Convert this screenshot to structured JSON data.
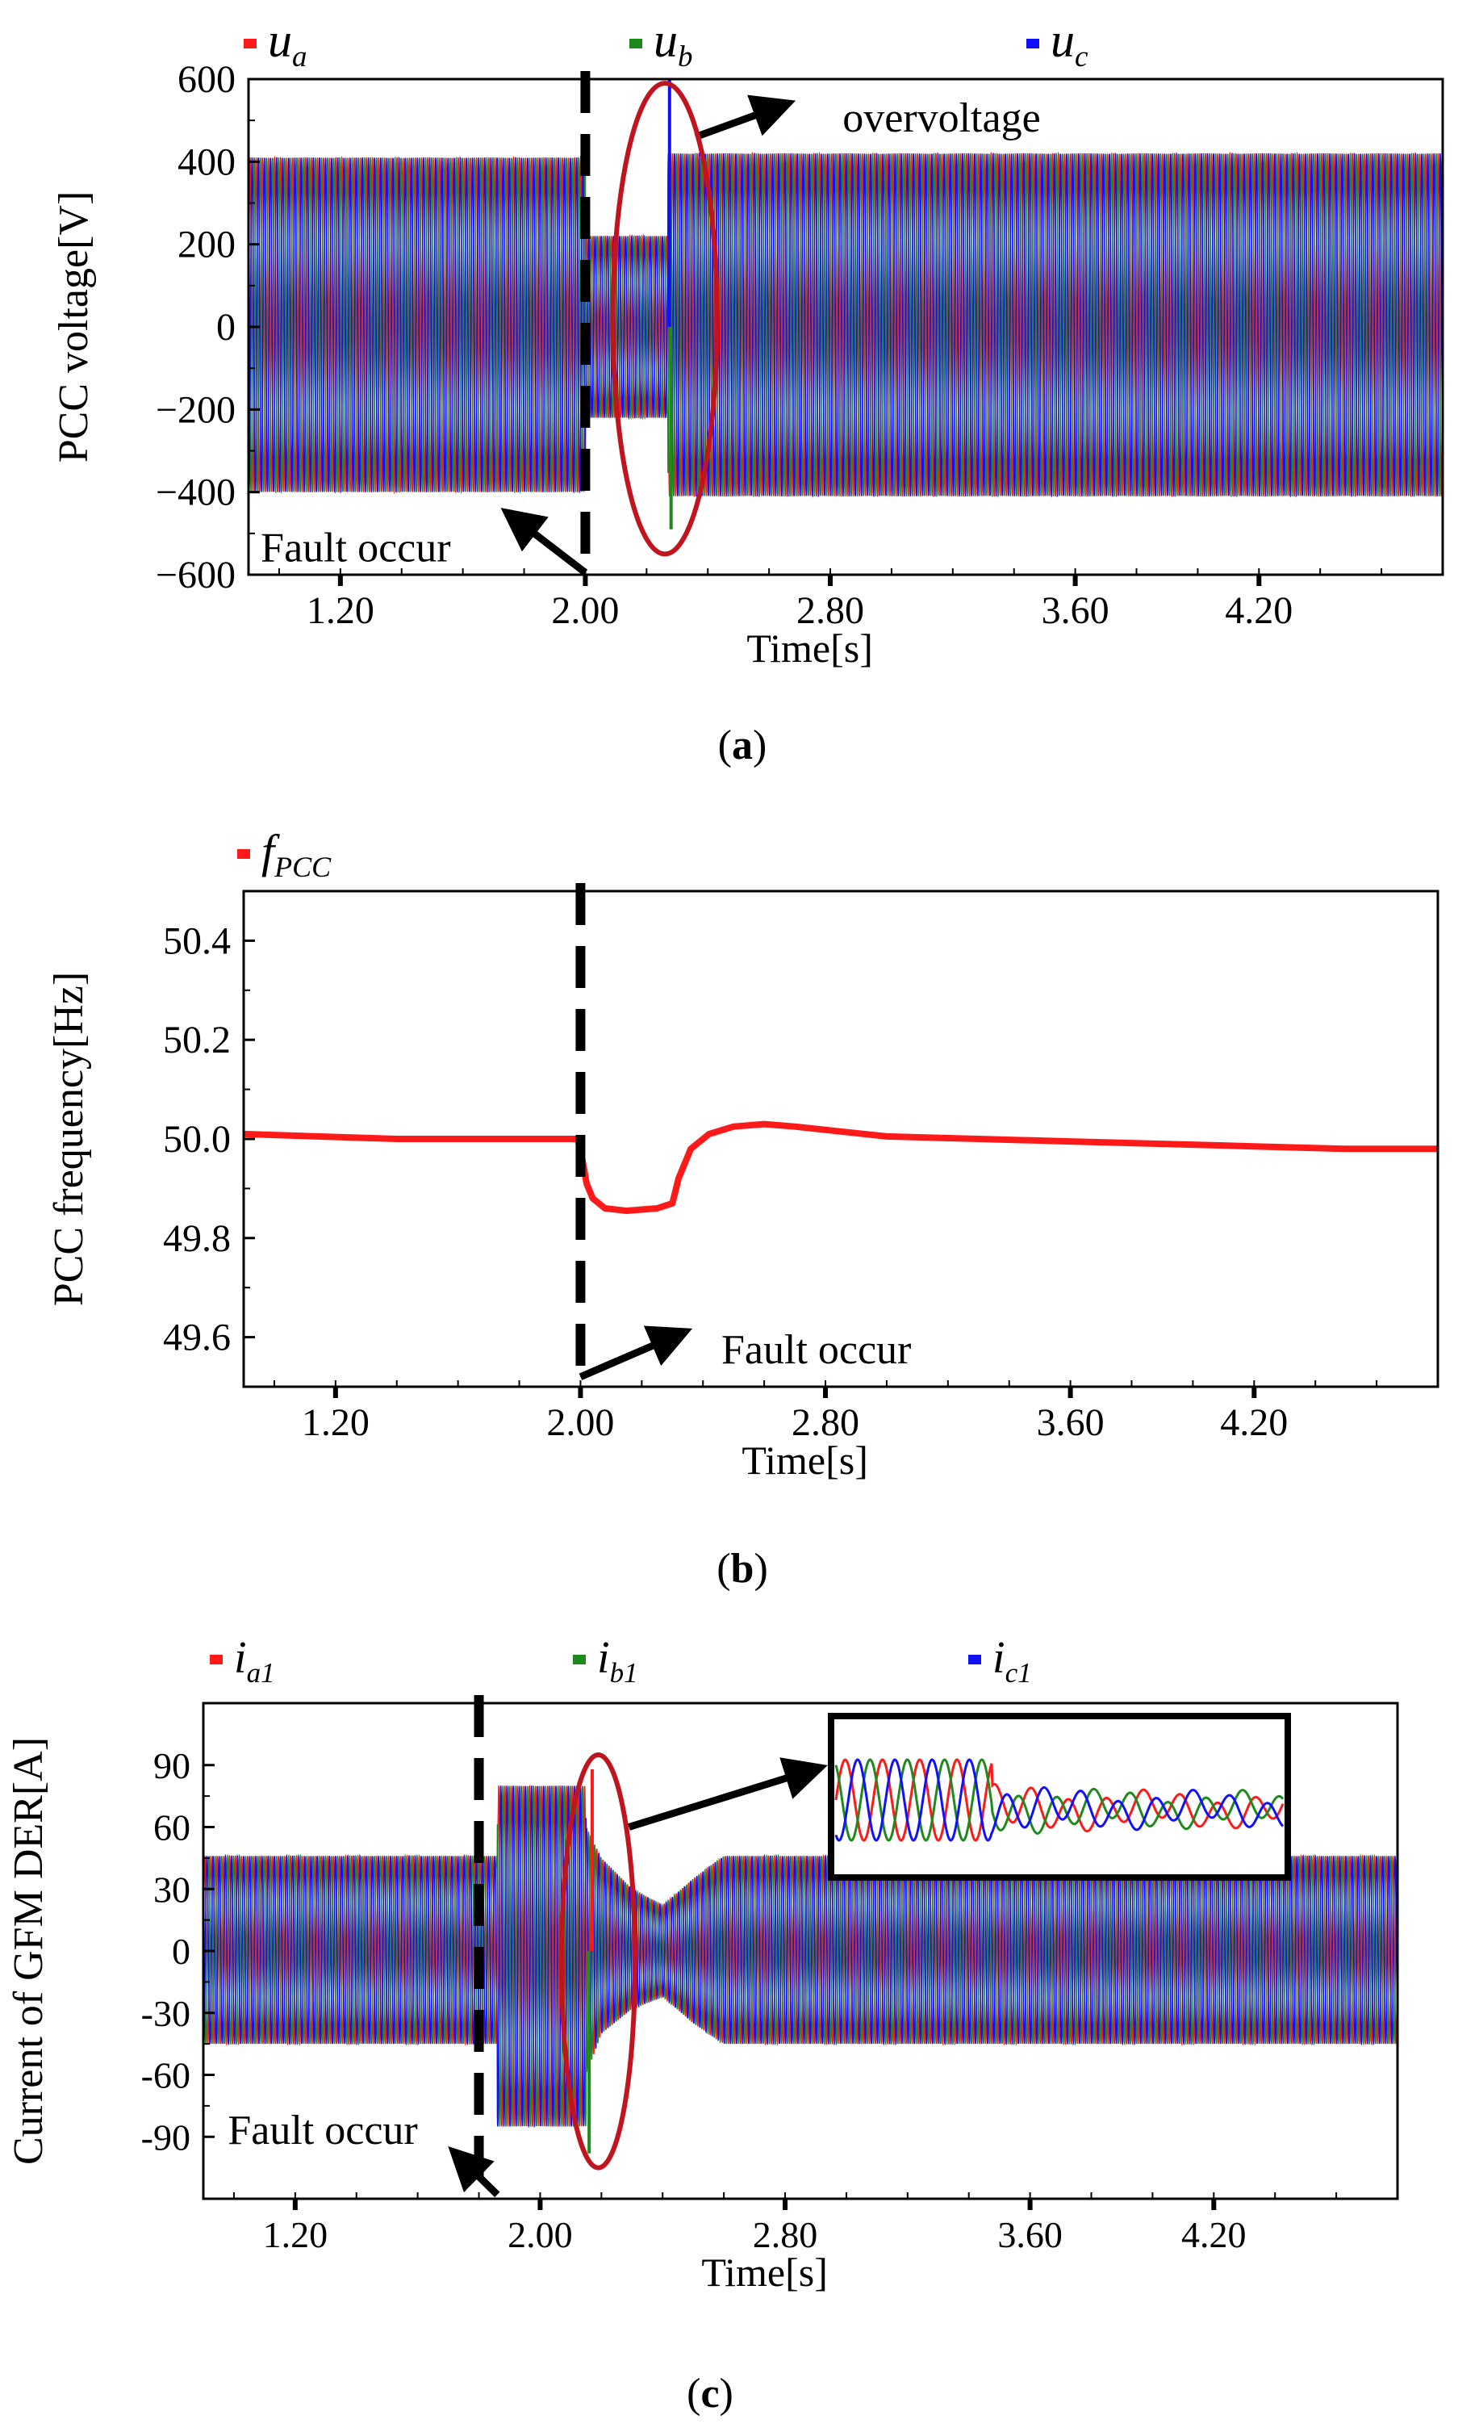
{
  "colors": {
    "red": "#ff1a1a",
    "green": "#1e8a1e",
    "blue": "#1010ff",
    "black": "#000000",
    "ellipse": "#c0141e"
  },
  "chart_data": [
    {
      "id": "a",
      "type": "line",
      "caption": "a",
      "ylabel": "PCC voltage[V]",
      "xlabel": "Time[s]",
      "xlim": [
        0.9,
        4.8
      ],
      "ylim": [
        -600,
        600
      ],
      "x_ticks": [
        "1.20",
        "2.00",
        "2.80",
        "3.60",
        "4.20"
      ],
      "y_ticks": [
        "600",
        "400",
        "200",
        "0",
        "−200",
        "−400",
        "−600"
      ],
      "legend": [
        {
          "base": "u",
          "sub": "a",
          "color": "red"
        },
        {
          "base": "u",
          "sub": "b",
          "color": "green"
        },
        {
          "base": "u",
          "sub": "c",
          "color": "blue"
        }
      ],
      "fault_time": 2.0,
      "series": [
        {
          "name": "envelope",
          "x": [
            0.9,
            2.0,
            2.0,
            2.27,
            2.27,
            4.8
          ],
          "upper": [
            410,
            410,
            220,
            220,
            420,
            420
          ],
          "lower": [
            -400,
            -400,
            -220,
            -220,
            -410,
            -410
          ]
        }
      ],
      "spikes": [
        {
          "x": 2.275,
          "y": 600,
          "color": "blue"
        },
        {
          "x": 2.28,
          "y": -490,
          "color": "green"
        }
      ],
      "annotations": [
        {
          "text": "overvoltage",
          "arrow_from": [
            2.36,
            460
          ],
          "arrow_to": [
            2.62,
            530
          ],
          "text_at": [
            2.84,
            500
          ]
        },
        {
          "text": "Fault occur",
          "arrow_from": [
            2.0,
            -595
          ],
          "arrow_to": [
            1.78,
            -470
          ],
          "text_at": [
            0.94,
            -540
          ]
        }
      ],
      "ellipse": {
        "cx": 2.26,
        "cy": 20,
        "rx": 0.17,
        "ry": 570
      }
    },
    {
      "id": "b",
      "type": "line",
      "caption": "b",
      "ylabel": "PCC frequency[Hz]",
      "xlabel": "Time[s]",
      "xlim": [
        0.9,
        4.8
      ],
      "ylim": [
        49.5,
        50.5
      ],
      "x_ticks": [
        "1.20",
        "2.00",
        "2.80",
        "3.60",
        "4.20"
      ],
      "y_ticks": [
        "50.4",
        "50.2",
        "50.0",
        "49.8",
        "49.6"
      ],
      "legend": [
        {
          "base": "f",
          "sub": "PCC",
          "color": "red"
        }
      ],
      "fault_time": 2.0,
      "series": [
        {
          "name": "f_PCC",
          "x": [
            0.9,
            1.4,
            1.99,
            2.0,
            2.02,
            2.04,
            2.08,
            2.15,
            2.25,
            2.3,
            2.32,
            2.36,
            2.42,
            2.5,
            2.6,
            2.7,
            2.85,
            3.0,
            3.3,
            3.6,
            3.9,
            4.2,
            4.5,
            4.8
          ],
          "y": [
            50.01,
            50.0,
            50.0,
            49.98,
            49.91,
            49.88,
            49.86,
            49.855,
            49.86,
            49.87,
            49.92,
            49.98,
            50.01,
            50.025,
            50.03,
            50.025,
            50.015,
            50.005,
            50.0,
            49.995,
            49.99,
            49.985,
            49.98,
            49.98
          ]
        }
      ],
      "annotations": [
        {
          "text": "Fault occur",
          "arrow_from": [
            2.0,
            49.52
          ],
          "arrow_to": [
            2.3,
            49.6
          ],
          "text_at": [
            2.46,
            49.57
          ]
        }
      ]
    },
    {
      "id": "c",
      "type": "line",
      "caption": "c",
      "ylabel": "Current of GFM DER[A]",
      "xlabel": "Time[s]",
      "xlim": [
        0.9,
        4.8
      ],
      "ylim": [
        -120,
        120
      ],
      "x_ticks": [
        "1.20",
        "2.00",
        "2.80",
        "3.60",
        "4.20"
      ],
      "y_ticks": [
        "90",
        "60",
        "30",
        "0",
        "-30",
        "-60",
        "-90"
      ],
      "legend": [
        {
          "base": "i",
          "sub": "a1",
          "color": "red"
        },
        {
          "base": "i",
          "sub": "b1",
          "color": "green"
        },
        {
          "base": "i",
          "sub": "c1",
          "color": "blue"
        }
      ],
      "fault_time": 1.8,
      "series": [
        {
          "name": "envelope",
          "x": [
            0.9,
            1.86,
            1.86,
            2.15,
            2.15,
            2.2,
            2.3,
            2.4,
            2.5,
            2.6,
            4.8
          ],
          "upper": [
            46,
            46,
            80,
            80,
            60,
            45,
            30,
            22,
            35,
            46,
            46
          ],
          "lower": [
            -45,
            -45,
            -85,
            -85,
            -60,
            -40,
            -28,
            -22,
            -35,
            -45,
            -45
          ]
        }
      ],
      "spikes": [
        {
          "x": 2.17,
          "y": 88,
          "color": "red"
        },
        {
          "x": 2.16,
          "y": -98,
          "color": "green"
        }
      ],
      "annotations": [
        {
          "text": "Fault occur",
          "arrow_from": [
            1.86,
            -118
          ],
          "arrow_to": [
            1.75,
            -102
          ],
          "text_at": [
            0.98,
            -88
          ]
        }
      ],
      "ellipse": {
        "cx": 2.19,
        "cy": -5,
        "rx": 0.12,
        "ry": 100
      },
      "inset": {
        "t_start": 0.0,
        "t_end": 1.0,
        "amp_before": 50,
        "amp_after": 16,
        "transition": 0.35
      }
    }
  ]
}
